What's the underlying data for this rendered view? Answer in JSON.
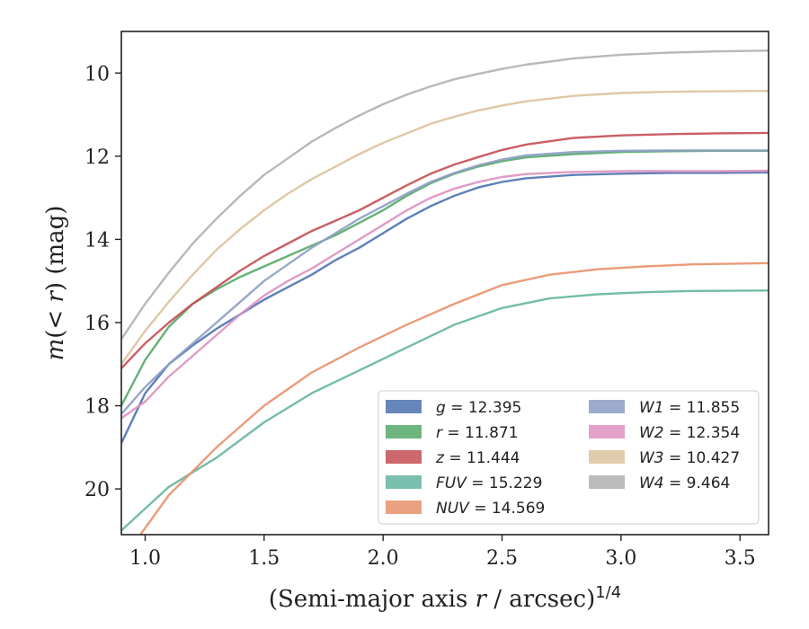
{
  "chart_data": {
    "type": "line",
    "xlabel": "(Semi-major axis r / arcsec)",
    "xlabel_var": "r",
    "xlabel_exp": "1/4",
    "ylabel_prefix": "m(< ",
    "ylabel_var": "r",
    "ylabel_suffix": ") (mag)",
    "xlim": [
      0.9,
      3.62
    ],
    "ylim": [
      21.1,
      9.0
    ],
    "y_inverted": true,
    "x_ticks": [
      "1.0",
      "1.5",
      "2.0",
      "2.5",
      "3.0",
      "3.5"
    ],
    "y_ticks": [
      "10",
      "12",
      "14",
      "16",
      "18",
      "20"
    ],
    "grid": false,
    "legend_position": "lower-right",
    "series": [
      {
        "name": "g = 12.395",
        "color": "#4c72b0",
        "x": [
          0.9,
          1.0,
          1.1,
          1.2,
          1.3,
          1.4,
          1.5,
          1.6,
          1.7,
          1.8,
          1.9,
          2.0,
          2.1,
          2.2,
          2.3,
          2.4,
          2.5,
          2.6,
          2.8,
          3.0,
          3.2,
          3.4,
          3.62
        ],
        "y": [
          18.9,
          17.7,
          17.0,
          16.55,
          16.15,
          15.8,
          15.45,
          15.15,
          14.85,
          14.5,
          14.2,
          13.85,
          13.5,
          13.2,
          12.95,
          12.75,
          12.62,
          12.53,
          12.45,
          12.42,
          12.4,
          12.4,
          12.39
        ]
      },
      {
        "name": "r = 11.871",
        "color": "#55a868",
        "x": [
          0.9,
          1.0,
          1.1,
          1.2,
          1.3,
          1.4,
          1.5,
          1.6,
          1.7,
          1.8,
          1.9,
          2.0,
          2.1,
          2.2,
          2.3,
          2.4,
          2.5,
          2.6,
          2.8,
          3.0,
          3.2,
          3.4,
          3.62
        ],
        "y": [
          18.0,
          16.9,
          16.1,
          15.55,
          15.2,
          14.9,
          14.65,
          14.4,
          14.15,
          13.9,
          13.6,
          13.3,
          12.95,
          12.65,
          12.42,
          12.25,
          12.12,
          12.03,
          11.95,
          11.9,
          11.88,
          11.87,
          11.87
        ]
      },
      {
        "name": "z = 11.444",
        "color": "#c44e52",
        "x": [
          0.9,
          1.0,
          1.1,
          1.2,
          1.3,
          1.4,
          1.5,
          1.6,
          1.7,
          1.8,
          1.9,
          2.0,
          2.1,
          2.2,
          2.3,
          2.4,
          2.5,
          2.6,
          2.8,
          3.0,
          3.2,
          3.4,
          3.62
        ],
        "y": [
          17.1,
          16.5,
          16.0,
          15.55,
          15.15,
          14.75,
          14.4,
          14.1,
          13.8,
          13.55,
          13.3,
          13.0,
          12.7,
          12.42,
          12.2,
          12.02,
          11.85,
          11.72,
          11.56,
          11.5,
          11.47,
          11.45,
          11.44
        ]
      },
      {
        "name": "FUV = 15.229",
        "color": "#64b5a0",
        "x": [
          0.9,
          1.1,
          1.3,
          1.5,
          1.7,
          1.9,
          2.1,
          2.3,
          2.5,
          2.7,
          2.9,
          3.1,
          3.3,
          3.62
        ],
        "y": [
          21.0,
          19.95,
          19.25,
          18.4,
          17.7,
          17.15,
          16.6,
          16.05,
          15.65,
          15.42,
          15.32,
          15.27,
          15.24,
          15.23
        ]
      },
      {
        "name": "NUV = 14.569",
        "color": "#e8916a",
        "x": [
          0.98,
          1.1,
          1.3,
          1.5,
          1.7,
          1.9,
          2.1,
          2.3,
          2.5,
          2.7,
          2.9,
          3.1,
          3.3,
          3.62
        ],
        "y": [
          21.1,
          20.15,
          19.0,
          18.0,
          17.2,
          16.6,
          16.05,
          15.55,
          15.1,
          14.85,
          14.72,
          14.65,
          14.6,
          14.57
        ]
      },
      {
        "name": "W1 = 11.855",
        "color": "#8c9dc4",
        "x": [
          0.9,
          1.0,
          1.1,
          1.2,
          1.3,
          1.4,
          1.5,
          1.6,
          1.7,
          1.8,
          1.9,
          2.0,
          2.1,
          2.2,
          2.3,
          2.4,
          2.5,
          2.6,
          2.8,
          3.0,
          3.2,
          3.4,
          3.62
        ],
        "y": [
          18.2,
          17.55,
          17.0,
          16.5,
          16.0,
          15.5,
          15.0,
          14.6,
          14.2,
          13.85,
          13.5,
          13.2,
          12.9,
          12.62,
          12.4,
          12.22,
          12.08,
          11.98,
          11.9,
          11.87,
          11.86,
          11.86,
          11.86
        ]
      },
      {
        "name": "W2 = 12.354",
        "color": "#dd90c0",
        "x": [
          0.9,
          1.0,
          1.1,
          1.2,
          1.3,
          1.4,
          1.5,
          1.6,
          1.7,
          1.8,
          1.9,
          2.0,
          2.1,
          2.2,
          2.3,
          2.4,
          2.5,
          2.6,
          2.8,
          3.0,
          3.2,
          3.4,
          3.62
        ],
        "y": [
          18.3,
          17.9,
          17.3,
          16.8,
          16.3,
          15.8,
          15.35,
          15.0,
          14.7,
          14.35,
          14.0,
          13.65,
          13.3,
          13.0,
          12.78,
          12.62,
          12.5,
          12.43,
          12.38,
          12.36,
          12.36,
          12.36,
          12.35
        ]
      },
      {
        "name": "W3 = 10.427",
        "color": "#dcc29c",
        "x": [
          0.9,
          1.0,
          1.1,
          1.2,
          1.3,
          1.4,
          1.5,
          1.6,
          1.7,
          1.8,
          1.9,
          2.0,
          2.1,
          2.2,
          2.3,
          2.4,
          2.5,
          2.6,
          2.8,
          3.0,
          3.2,
          3.4,
          3.62
        ],
        "y": [
          17.0,
          16.2,
          15.5,
          14.85,
          14.25,
          13.75,
          13.3,
          12.9,
          12.55,
          12.25,
          11.95,
          11.68,
          11.45,
          11.22,
          11.05,
          10.9,
          10.78,
          10.68,
          10.55,
          10.48,
          10.45,
          10.44,
          10.43
        ]
      },
      {
        "name": "W4 = 9.464",
        "color": "#b0b0b0",
        "x": [
          0.9,
          1.0,
          1.1,
          1.2,
          1.3,
          1.4,
          1.5,
          1.6,
          1.7,
          1.8,
          1.9,
          2.0,
          2.1,
          2.2,
          2.3,
          2.4,
          2.5,
          2.6,
          2.8,
          3.0,
          3.2,
          3.4,
          3.62
        ],
        "y": [
          16.4,
          15.55,
          14.8,
          14.1,
          13.5,
          12.95,
          12.45,
          12.05,
          11.65,
          11.32,
          11.02,
          10.75,
          10.52,
          10.32,
          10.15,
          10.02,
          9.9,
          9.8,
          9.65,
          9.56,
          9.51,
          9.48,
          9.46
        ]
      }
    ]
  }
}
